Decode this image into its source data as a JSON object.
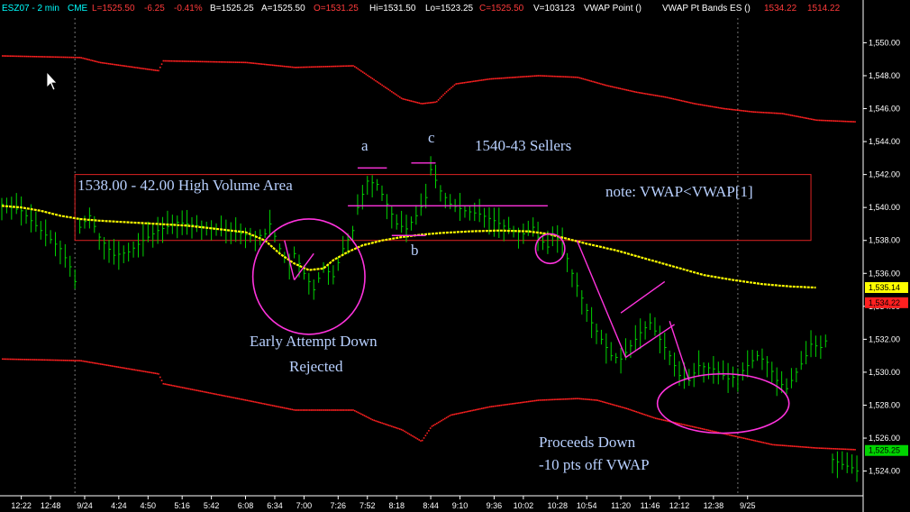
{
  "header": {
    "symbol": "ESZ07 - 2 min",
    "exchange": "CME",
    "last": "L=1525.50",
    "change": "-6.25",
    "pct": "-0.41%",
    "bid": "B=1525.25",
    "ask": "A=1525.50",
    "open": "O=1531.25",
    "high": "Hi=1531.50",
    "low": "Lo=1523.25",
    "close": "C=1525.50",
    "volume": "V=103123",
    "study1": "VWAP Point  ()",
    "study2": "VWAP Pt Bands ES  ()",
    "band_upper": "1534.22",
    "band_lower": "1514.22"
  },
  "colors": {
    "price": "#00d400",
    "vwap": "#ffff00",
    "bands": "#ff2020",
    "annotation_line": "#ff33dd",
    "box": "#dd2222",
    "annotation_text": "#b8d0ff",
    "header_text": "#ffffff",
    "header_cyan": "#00ffff",
    "header_red": "#ff3b3b"
  },
  "chart_data": {
    "type": "line",
    "ylim": [
      1522.5,
      1551.5
    ],
    "y_ticks": [
      "1,550.00",
      "1,548.00",
      "1,546.00",
      "1,544.00",
      "1,542.00",
      "1,540.00",
      "1,538.00",
      "1,536.00",
      "1,534.00",
      "1,532.00",
      "1,530.00",
      "1,528.00",
      "1,526.00",
      "1,524.00"
    ],
    "y_tick_values": [
      1550,
      1548,
      1546,
      1544,
      1542,
      1540,
      1538,
      1536,
      1534,
      1532,
      1530,
      1528,
      1526,
      1524
    ],
    "x_ticks": [
      "12:22",
      "12:48",
      "9/24",
      "4:24",
      "4:50",
      "5:16",
      "5:42",
      "6:08",
      "6:34",
      "7:00",
      "7:26",
      "7:52",
      "8:18",
      "8:44",
      "9:10",
      "9:36",
      "10:02",
      "10:28",
      "10:54",
      "11:20",
      "11:46",
      "12:12",
      "12:38",
      "9/25"
    ],
    "x_tick_index": [
      4,
      10,
      17,
      24,
      30,
      37,
      43,
      50,
      56,
      62,
      69,
      75,
      81,
      88,
      94,
      101,
      107,
      114,
      120,
      127,
      133,
      139,
      146,
      153
    ],
    "bar_count": 160,
    "session_breaks": [
      15,
      151
    ],
    "value_labels": [
      {
        "text": "1,535.14",
        "value": 1535.14,
        "color": "#ffff00"
      },
      {
        "text": "1,534.22",
        "value": 1534.22,
        "color": "#ff2020"
      },
      {
        "text": "1,525.25",
        "value": 1525.25,
        "color": "#00d400"
      }
    ],
    "price_path": [
      [
        0,
        1540.2
      ],
      [
        4,
        1539.8
      ],
      [
        8,
        1538.6
      ],
      [
        12,
        1537.5
      ],
      [
        14,
        1536.4
      ],
      [
        15,
        1535.5
      ],
      [
        16,
        1538.8
      ],
      [
        18,
        1539.5
      ],
      [
        20,
        1538.2
      ],
      [
        23,
        1537.1
      ],
      [
        26,
        1537.3
      ],
      [
        29,
        1538.0
      ],
      [
        32,
        1538.6
      ],
      [
        36,
        1539.1
      ],
      [
        40,
        1538.9
      ],
      [
        44,
        1538.7
      ],
      [
        48,
        1538.5
      ],
      [
        52,
        1538.2
      ],
      [
        54,
        1538.4
      ],
      [
        55,
        1539.0
      ],
      [
        57,
        1537.5
      ],
      [
        59,
        1536.5
      ],
      [
        60,
        1537.2
      ],
      [
        62,
        1536.0
      ],
      [
        64,
        1535.0
      ],
      [
        66,
        1536.4
      ],
      [
        68,
        1535.8
      ],
      [
        70,
        1537.5
      ],
      [
        72,
        1538.6
      ],
      [
        73,
        1540.0
      ],
      [
        75,
        1541.6
      ],
      [
        77,
        1541.4
      ],
      [
        79,
        1540.2
      ],
      [
        81,
        1539.0
      ],
      [
        83,
        1538.7
      ],
      [
        85,
        1539.5
      ],
      [
        87,
        1540.6
      ],
      [
        88,
        1542.3
      ],
      [
        90,
        1541.0
      ],
      [
        92,
        1540.2
      ],
      [
        95,
        1539.8
      ],
      [
        98,
        1539.6
      ],
      [
        101,
        1539.2
      ],
      [
        104,
        1538.7
      ],
      [
        107,
        1538.4
      ],
      [
        109,
        1538.8
      ],
      [
        110,
        1538.2
      ],
      [
        112,
        1537.6
      ],
      [
        113,
        1538.4
      ],
      [
        115,
        1537.8
      ],
      [
        117,
        1536.0
      ],
      [
        119,
        1534.5
      ],
      [
        121,
        1533.0
      ],
      [
        123,
        1532.0
      ],
      [
        125,
        1531.0
      ],
      [
        127,
        1530.8
      ],
      [
        129,
        1531.6
      ],
      [
        131,
        1532.4
      ],
      [
        133,
        1533.0
      ],
      [
        135,
        1532.0
      ],
      [
        137,
        1531.0
      ],
      [
        139,
        1529.8
      ],
      [
        141,
        1529.5
      ],
      [
        143,
        1530.4
      ],
      [
        146,
        1530.2
      ],
      [
        149,
        1529.6
      ],
      [
        151,
        1529.8
      ],
      [
        153,
        1530.4
      ],
      [
        155,
        1531.0
      ],
      [
        157,
        1530.6
      ],
      [
        159,
        1529.5
      ],
      [
        161,
        1529.0
      ],
      [
        163,
        1530.0
      ],
      [
        165,
        1531.0
      ],
      [
        166,
        1531.7
      ],
      [
        168,
        1531.5
      ],
      [
        169,
        1531.9
      ]
    ],
    "price_path_2": [
      [
        0,
        1524.7
      ],
      [
        2,
        1524.4
      ],
      [
        4,
        1524.2
      ],
      [
        6,
        1523.8
      ]
    ],
    "vwap_path": [
      [
        0,
        1540.1
      ],
      [
        4,
        1540.0
      ],
      [
        8,
        1539.8
      ],
      [
        12,
        1539.5
      ],
      [
        16,
        1539.3
      ],
      [
        20,
        1539.2
      ],
      [
        26,
        1539.1
      ],
      [
        32,
        1539.0
      ],
      [
        38,
        1538.9
      ],
      [
        44,
        1538.7
      ],
      [
        50,
        1538.5
      ],
      [
        54,
        1538.0
      ],
      [
        57,
        1537.2
      ],
      [
        60,
        1536.6
      ],
      [
        63,
        1536.2
      ],
      [
        66,
        1536.3
      ],
      [
        68,
        1536.8
      ],
      [
        71,
        1537.3
      ],
      [
        74,
        1537.7
      ],
      [
        78,
        1538.0
      ],
      [
        82,
        1538.2
      ],
      [
        86,
        1538.35
      ],
      [
        90,
        1538.45
      ],
      [
        96,
        1538.55
      ],
      [
        102,
        1538.6
      ],
      [
        108,
        1538.55
      ],
      [
        112,
        1538.4
      ],
      [
        116,
        1538.1
      ],
      [
        120,
        1537.8
      ],
      [
        126,
        1537.4
      ],
      [
        132,
        1536.9
      ],
      [
        138,
        1536.4
      ],
      [
        144,
        1535.9
      ],
      [
        150,
        1535.6
      ],
      [
        156,
        1535.35
      ],
      [
        162,
        1535.2
      ],
      [
        167,
        1535.14
      ]
    ],
    "upper_band_path": [
      [
        0,
        1549.2
      ],
      [
        16,
        1549.1
      ],
      [
        20,
        1548.8
      ],
      [
        32,
        1548.3
      ],
      [
        33,
        1548.9
      ],
      [
        50,
        1548.8
      ],
      [
        60,
        1548.5
      ],
      [
        72,
        1548.6
      ],
      [
        76,
        1547.8
      ],
      [
        82,
        1546.6
      ],
      [
        86,
        1546.3
      ],
      [
        89,
        1546.4
      ],
      [
        91,
        1547.0
      ],
      [
        93,
        1547.5
      ],
      [
        100,
        1547.8
      ],
      [
        110,
        1548.0
      ],
      [
        118,
        1547.9
      ],
      [
        124,
        1547.4
      ],
      [
        130,
        1547.0
      ],
      [
        136,
        1546.7
      ],
      [
        142,
        1546.3
      ],
      [
        148,
        1546.0
      ],
      [
        154,
        1545.8
      ],
      [
        160,
        1545.7
      ],
      [
        167,
        1545.3
      ],
      [
        175,
        1545.2
      ]
    ],
    "lower_band_path": [
      [
        0,
        1530.8
      ],
      [
        16,
        1530.7
      ],
      [
        20,
        1530.5
      ],
      [
        32,
        1529.9
      ],
      [
        33,
        1529.3
      ],
      [
        50,
        1528.3
      ],
      [
        60,
        1527.7
      ],
      [
        72,
        1527.7
      ],
      [
        76,
        1527.1
      ],
      [
        82,
        1526.5
      ],
      [
        86,
        1525.8
      ],
      [
        88,
        1526.7
      ],
      [
        92,
        1527.4
      ],
      [
        100,
        1527.9
      ],
      [
        110,
        1528.3
      ],
      [
        118,
        1528.4
      ],
      [
        122,
        1528.3
      ],
      [
        128,
        1527.8
      ],
      [
        134,
        1527.2
      ],
      [
        140,
        1526.8
      ],
      [
        146,
        1526.4
      ],
      [
        152,
        1526.0
      ],
      [
        158,
        1525.6
      ],
      [
        167,
        1525.4
      ],
      [
        175,
        1525.3
      ]
    ],
    "hva_box": {
      "x0": 15,
      "x1": 166,
      "y_low": 1538.0,
      "y_high": 1542.0
    },
    "annotations": {
      "hva": "1538.00 - 42.00 High Volume Area",
      "a": "a",
      "b": "b",
      "c": "c",
      "sellers": "1540-43 Sellers",
      "note": "note: VWAP<VWAP[1]",
      "early1": "Early Attempt Down",
      "early2": "Rejected",
      "proceeds1": "Proceeds Down",
      "proceeds2": "-10 pts off VWAP"
    },
    "marker_lines": [
      {
        "x0": 73,
        "x1": 79,
        "y0": 1542.4,
        "y1": 1542.4
      },
      {
        "x0": 84,
        "x1": 89,
        "y0": 1542.7,
        "y1": 1542.7
      },
      {
        "x0": 80,
        "x1": 87,
        "y0": 1538.3,
        "y1": 1538.3
      },
      {
        "x0": 71,
        "x1": 112,
        "y0": 1540.1,
        "y1": 1540.1
      },
      {
        "x0": 58,
        "x1": 60,
        "y0": 1538.0,
        "y1": 1535.6
      },
      {
        "x0": 60,
        "x1": 64,
        "y0": 1535.6,
        "y1": 1537.2
      },
      {
        "x0": 118,
        "x1": 128,
        "y0": 1538.0,
        "y1": 1530.9
      },
      {
        "x0": 128,
        "x1": 138,
        "y0": 1530.9,
        "y1": 1532.9
      },
      {
        "x0": 127,
        "x1": 136,
        "y0": 1533.6,
        "y1": 1535.5
      },
      {
        "x0": 137,
        "x1": 141,
        "y0": 1533.1,
        "y1": 1529.5
      }
    ],
    "ellipses": [
      {
        "cx": 63,
        "cy": 1535.8,
        "rx": 11.5,
        "ry": 3.5
      },
      {
        "cx": 112.5,
        "cy": 1537.5,
        "rx": 3.0,
        "ry": 0.9
      },
      {
        "cx": 148,
        "cy": 1528.1,
        "rx": 13.5,
        "ry": 1.8
      }
    ]
  }
}
